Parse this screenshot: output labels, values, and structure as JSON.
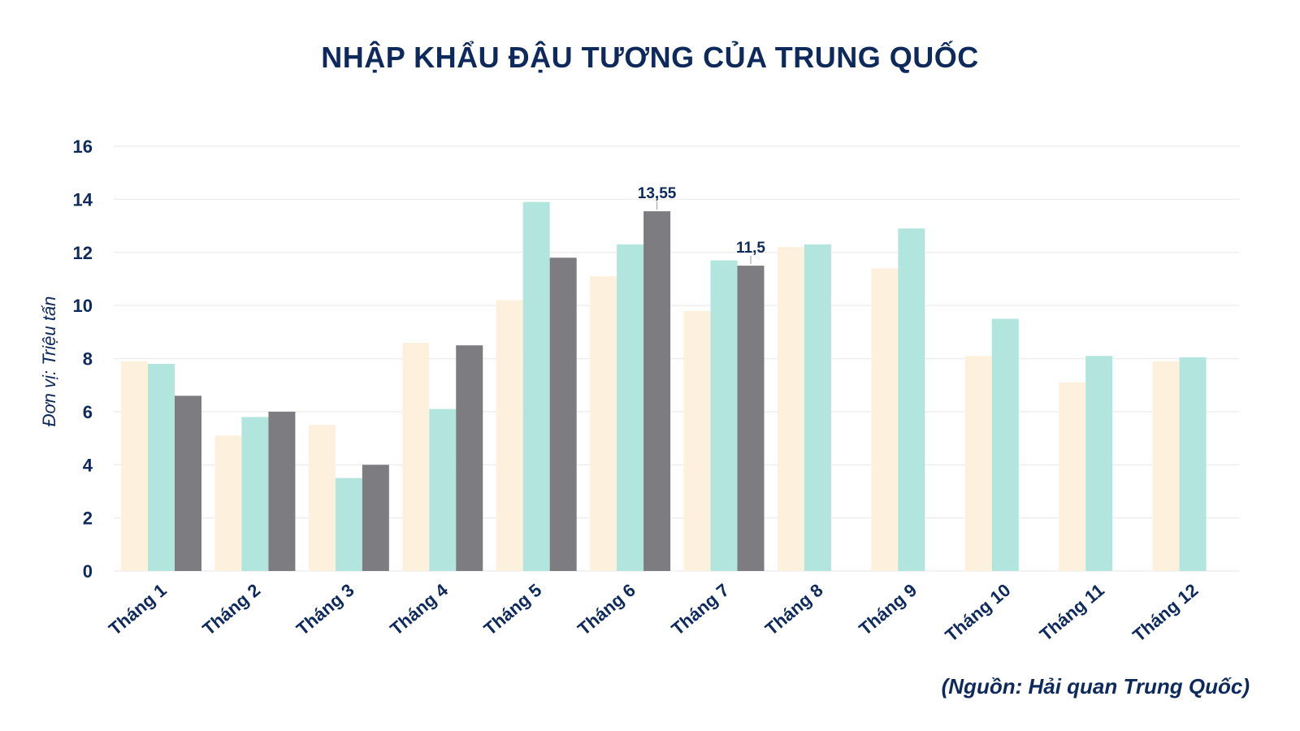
{
  "chart_data": {
    "type": "bar",
    "title": "NHẬP KHẨU ĐẬU TƯƠNG CỦA TRUNG QUỐC",
    "ylabel": "Đơn vị: Triệu tấn",
    "xlabel": "",
    "ylim": [
      0,
      16
    ],
    "yticks": [
      "0",
      "2",
      "4",
      "6",
      "8",
      "10",
      "12",
      "14",
      "16"
    ],
    "grid": true,
    "categories": [
      "Tháng 1",
      "Tháng 2",
      "Tháng 3",
      "Tháng 4",
      "Tháng 5",
      "Tháng 6",
      "Tháng 7",
      "Tháng 8",
      "Tháng 9",
      "Tháng 10",
      "Tháng 11",
      "Tháng 12"
    ],
    "series": [
      {
        "color": "#fdf1dd",
        "values": [
          7.9,
          5.1,
          5.5,
          8.6,
          10.2,
          11.1,
          9.8,
          12.2,
          11.4,
          8.1,
          7.1,
          7.9
        ]
      },
      {
        "color": "#b1e5de",
        "values": [
          7.8,
          5.8,
          3.5,
          6.1,
          13.9,
          12.3,
          11.7,
          12.3,
          12.9,
          9.5,
          8.1,
          8.05
        ]
      },
      {
        "color": "#7d7c80",
        "values": [
          6.6,
          6.0,
          4.0,
          8.5,
          11.8,
          13.55,
          11.5,
          null,
          null,
          null,
          null,
          null
        ]
      }
    ],
    "data_labels": [
      {
        "category": "Tháng 6",
        "series": 2,
        "text": "13,55"
      },
      {
        "category": "Tháng 7",
        "series": 2,
        "text": "11,5"
      }
    ]
  },
  "source_note": "(Nguồn: Hải quan Trung Quốc)"
}
